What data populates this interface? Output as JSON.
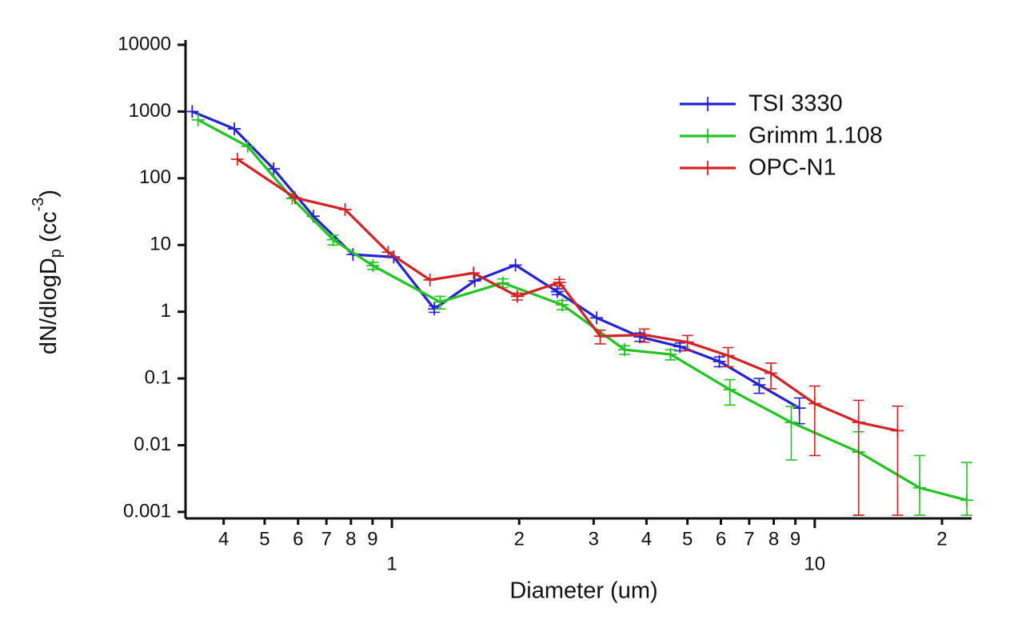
{
  "chart_data": {
    "type": "line",
    "xlabel": "Diameter (um)",
    "ylabel": {
      "main": "dN/dlogD",
      "sub": "p",
      "mid": " (cc",
      "sup": "-3",
      "end": ")"
    },
    "xscale": "log",
    "yscale": "log",
    "xlim": [
      0.325,
      23.5
    ],
    "ylim": [
      0.0008,
      10000
    ],
    "yticks": [
      0.001,
      0.01,
      0.1,
      1,
      10,
      100,
      1000,
      10000
    ],
    "xticks": [
      {
        "value": 0.4,
        "label": "4"
      },
      {
        "value": 0.5,
        "label": "5"
      },
      {
        "value": 0.6,
        "label": "6"
      },
      {
        "value": 0.7,
        "label": "7"
      },
      {
        "value": 0.8,
        "label": "8"
      },
      {
        "value": 0.9,
        "label": "9"
      },
      1,
      {
        "value": 2,
        "label": "2"
      },
      {
        "value": 3,
        "label": "3"
      },
      {
        "value": 4,
        "label": "4"
      },
      {
        "value": 5,
        "label": "5"
      },
      {
        "value": 6,
        "label": "6"
      },
      {
        "value": 7,
        "label": "7"
      },
      {
        "value": 8,
        "label": "8"
      },
      {
        "value": 9,
        "label": "9"
      },
      10,
      {
        "value": 20,
        "label": "2"
      }
    ],
    "legend": "upper right",
    "series": [
      {
        "name": "TSI 3330",
        "color": "#2323d2",
        "x": [
          0.337,
          0.424,
          0.525,
          0.652,
          0.809,
          1.01,
          1.26,
          1.57,
          1.96,
          2.46,
          3.05,
          3.86,
          4.8,
          5.95,
          7.39,
          9.2
        ],
        "values": [
          1000,
          550,
          138,
          27,
          7.2,
          6.6,
          1.1,
          2.9,
          5.0,
          2.0,
          0.81,
          0.42,
          0.3,
          0.18,
          0.08,
          0.036
        ],
        "errors": [
          null,
          null,
          null,
          null,
          null,
          null,
          0.12,
          null,
          null,
          0.2,
          null,
          0.06,
          0.04,
          0.03,
          0.02,
          0.015
        ]
      },
      {
        "name": "Grimm 1.108",
        "color": "#22c422",
        "x": [
          0.348,
          0.456,
          0.581,
          0.726,
          0.902,
          1.3,
          1.83,
          2.53,
          3.55,
          4.56,
          6.3,
          8.8,
          12.7,
          17.7,
          22.9
        ],
        "values": [
          750,
          300,
          50,
          12,
          4.9,
          1.4,
          2.7,
          1.27,
          0.27,
          0.23,
          0.068,
          0.022,
          0.0079,
          0.0023,
          0.0015
        ],
        "errors": [
          null,
          null,
          null,
          2,
          0.6,
          0.3,
          0.4,
          0.2,
          0.04,
          0.04,
          0.028,
          0.016,
          0.008,
          0.0047,
          0.004
        ]
      },
      {
        "name": "OPC-N1",
        "color": "#d22424",
        "x": [
          0.431,
          0.59,
          0.775,
          0.98,
          1.23,
          1.56,
          1.98,
          2.49,
          3.11,
          3.95,
          5.0,
          6.24,
          7.88,
          10,
          12.7,
          15.7
        ],
        "values": [
          193,
          51,
          34,
          7.8,
          3.0,
          3.8,
          1.7,
          2.75,
          0.43,
          0.45,
          0.35,
          0.22,
          0.12,
          0.042,
          0.022,
          0.0165
        ],
        "errors": [
          null,
          null,
          null,
          null,
          null,
          null,
          0.2,
          0.3,
          0.1,
          0.1,
          0.09,
          0.07,
          0.05,
          0.035,
          0.025,
          0.022
        ]
      }
    ]
  }
}
